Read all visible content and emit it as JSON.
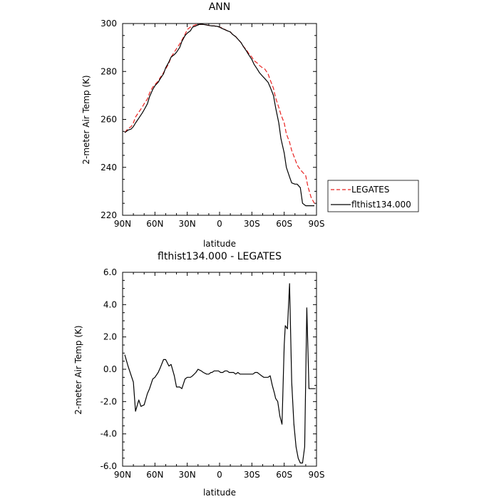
{
  "chart_data": [
    {
      "type": "line",
      "title": "ANN",
      "xlabel": "latitude",
      "ylabel": "2-meter Air Temp (K)",
      "xlim": [
        90,
        -90
      ],
      "ylim": [
        220,
        300
      ],
      "xticks": [
        90,
        60,
        30,
        0,
        -30,
        -60,
        -90
      ],
      "xtick_labels": [
        "90N",
        "60N",
        "30N",
        "0",
        "30S",
        "60S",
        "90S"
      ],
      "yticks": [
        220,
        240,
        260,
        280,
        300
      ],
      "ytick_labels": [
        "220",
        "240",
        "260",
        "280",
        "300"
      ],
      "legend_position": "right",
      "series": [
        {
          "name": "LEGATES",
          "color": "#e8211f",
          "dash": "dashed",
          "x": [
            88,
            85,
            82,
            80,
            78,
            75,
            72,
            70,
            67,
            65,
            62,
            60,
            57,
            55,
            52,
            50,
            47,
            45,
            42,
            40,
            37,
            35,
            32,
            30,
            27,
            25,
            22,
            20,
            17,
            15,
            12,
            10,
            7,
            5,
            2,
            0,
            -2,
            -5,
            -7,
            -10,
            -12,
            -15,
            -17,
            -20,
            -22,
            -25,
            -27,
            -30,
            -32,
            -35,
            -37,
            -40,
            -42,
            -45,
            -47,
            -50,
            -52,
            -55,
            -57,
            -60,
            -62,
            -65,
            -67,
            -70,
            -72,
            -75,
            -77,
            -80,
            -82,
            -85,
            -88
          ],
          "y": [
            254.5,
            256.2,
            257.0,
            258.5,
            261.0,
            263.0,
            265.0,
            266.5,
            268.5,
            271.0,
            273.5,
            274.5,
            276.0,
            277.5,
            279.5,
            281.0,
            283.5,
            286.0,
            288.0,
            289.5,
            291.5,
            293.0,
            295.5,
            297.5,
            298.5,
            299.0,
            299.5,
            299.6,
            299.7,
            299.6,
            299.4,
            299.2,
            299.0,
            299.0,
            298.8,
            298.5,
            298.2,
            297.5,
            297.0,
            296.5,
            295.5,
            294.5,
            293.5,
            292.0,
            290.5,
            289.0,
            287.5,
            286.0,
            284.5,
            283.5,
            282.5,
            281.5,
            281.0,
            279.0,
            276.5,
            273.0,
            269.0,
            265.0,
            262.0,
            258.5,
            254.0,
            250.5,
            247.0,
            243.5,
            241.0,
            239.0,
            238.0,
            236.5,
            232.0,
            227.5,
            225.0
          ]
        },
        {
          "name": "flthist134.000",
          "color": "#000000",
          "dash": "solid",
          "x": [
            88,
            85,
            82,
            80,
            78,
            75,
            72,
            70,
            67,
            65,
            62,
            60,
            57,
            55,
            52,
            50,
            47,
            45,
            42,
            40,
            37,
            35,
            32,
            30,
            27,
            25,
            22,
            20,
            17,
            15,
            12,
            10,
            7,
            5,
            2,
            0,
            -2,
            -5,
            -7,
            -10,
            -12,
            -15,
            -17,
            -20,
            -22,
            -25,
            -27,
            -30,
            -32,
            -35,
            -37,
            -40,
            -42,
            -45,
            -47,
            -50,
            -52,
            -55,
            -57,
            -60,
            -62,
            -65,
            -67,
            -70,
            -72,
            -75,
            -77,
            -80,
            -82,
            -85,
            -88
          ],
          "y": [
            254.5,
            255.5,
            256.0,
            257.0,
            258.5,
            260.5,
            262.5,
            264.0,
            266.5,
            269.5,
            272.5,
            274.0,
            275.5,
            277.0,
            279.0,
            281.5,
            284.0,
            286.0,
            287.0,
            288.0,
            290.0,
            292.5,
            295.0,
            296.0,
            297.0,
            298.5,
            299.0,
            299.5,
            299.7,
            299.6,
            299.4,
            299.2,
            299.0,
            299.0,
            298.8,
            298.5,
            298.0,
            297.4,
            297.0,
            296.5,
            295.5,
            294.5,
            293.5,
            292.0,
            290.5,
            288.5,
            287.0,
            285.0,
            283.0,
            281.0,
            279.5,
            278.0,
            277.0,
            275.5,
            273.5,
            270.0,
            265.0,
            258.5,
            252.0,
            246.0,
            240.0,
            236.0,
            233.5,
            233.0,
            233.0,
            231.5,
            225.0,
            224.0,
            224.0,
            224.0,
            224.0
          ]
        }
      ]
    },
    {
      "type": "line",
      "title": "flthist134.000 - LEGATES",
      "xlabel": "latitude",
      "ylabel": "2-meter Air Temp (K)",
      "xlim": [
        90,
        -90
      ],
      "ylim": [
        -6,
        6
      ],
      "xticks": [
        90,
        60,
        30,
        0,
        -30,
        -60,
        -90
      ],
      "xtick_labels": [
        "90N",
        "60N",
        "30N",
        "0",
        "30S",
        "60S",
        "90S"
      ],
      "yticks": [
        -6,
        -4,
        -2,
        0,
        2,
        4,
        6
      ],
      "ytick_labels": [
        "-6.0",
        "-4.0",
        "-2.0",
        "0.0",
        "2.0",
        "4.0",
        "6.0"
      ],
      "series": [
        {
          "color": "#000000",
          "dash": "solid",
          "x": [
            88,
            85,
            82,
            80,
            78,
            75,
            73,
            70,
            67,
            65,
            62,
            60,
            57,
            55,
            52,
            50,
            47,
            45,
            42,
            40,
            37,
            35,
            32,
            30,
            27,
            25,
            22,
            20,
            17,
            15,
            12,
            10,
            8,
            7,
            5,
            3,
            1,
            -1,
            -3,
            -5,
            -7,
            -9,
            -11,
            -13,
            -15,
            -17,
            -19,
            -21,
            -23,
            -25,
            -27,
            -29,
            -31,
            -33,
            -35,
            -37,
            -39,
            -41,
            -43,
            -45,
            -47,
            -49,
            -51,
            -52,
            -54,
            -56,
            -58,
            -60,
            -61,
            -63,
            -65,
            -67,
            -69,
            -71,
            -73,
            -75,
            -77,
            -79,
            -81,
            -83,
            -85,
            -87,
            -89
          ],
          "y": [
            0.9,
            0.2,
            -0.4,
            -0.8,
            -2.6,
            -1.9,
            -2.3,
            -2.2,
            -1.5,
            -1.2,
            -0.6,
            -0.5,
            -0.2,
            0.1,
            0.6,
            0.6,
            0.2,
            0.3,
            -0.4,
            -1.1,
            -1.1,
            -1.2,
            -0.6,
            -0.5,
            -0.5,
            -0.4,
            -0.2,
            0.0,
            -0.1,
            -0.2,
            -0.3,
            -0.3,
            -0.2,
            -0.2,
            -0.1,
            -0.1,
            -0.1,
            -0.2,
            -0.2,
            -0.1,
            -0.1,
            -0.2,
            -0.2,
            -0.2,
            -0.3,
            -0.2,
            -0.3,
            -0.3,
            -0.3,
            -0.3,
            -0.3,
            -0.3,
            -0.3,
            -0.2,
            -0.2,
            -0.3,
            -0.4,
            -0.5,
            -0.5,
            -0.5,
            -0.4,
            -1.0,
            -1.5,
            -1.8,
            -2.0,
            -2.9,
            -3.4,
            1.5,
            2.7,
            2.5,
            5.3,
            -0.8,
            -3.4,
            -4.8,
            -5.5,
            -5.8,
            -5.8,
            -4.8,
            3.8,
            -1.2,
            -1.2,
            -1.2,
            -1.2
          ]
        }
      ]
    }
  ]
}
